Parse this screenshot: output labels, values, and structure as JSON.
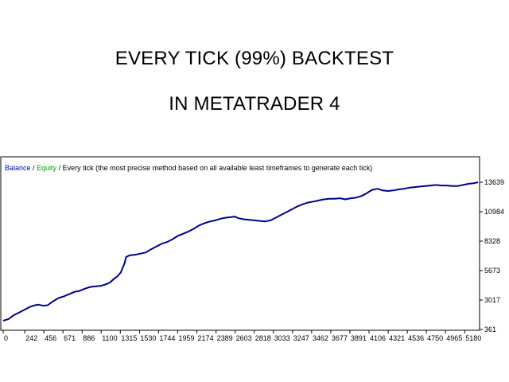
{
  "headline": {
    "line1": "EVERY TICK (99%) BACKTEST",
    "line2": "IN METATRADER 4"
  },
  "legend": {
    "balance": "Balance",
    "sep1": " / ",
    "equity": "Equity",
    "sep2": " / ",
    "description": "Every tick (the most precise method based on all available least timeframes to generate each tick)"
  },
  "colors": {
    "balance_label": "#0000c0",
    "equity_label": "#00a000",
    "line": "#000090",
    "frame": "#000000",
    "background": "#ffffff"
  },
  "chart_data": {
    "type": "line",
    "title": "",
    "xlabel": "",
    "ylabel": "",
    "xlim": [
      0,
      5329
    ],
    "ylim": [
      361,
      14000
    ],
    "x_ticks": [
      0,
      242,
      456,
      671,
      886,
      1100,
      1315,
      1530,
      1744,
      1959,
      2174,
      2389,
      2603,
      2818,
      3033,
      3247,
      3462,
      3677,
      3891,
      4106,
      4321,
      4536,
      4750,
      4965,
      5180
    ],
    "y_ticks": [
      361,
      3017,
      5673,
      8328,
      10984,
      13639
    ],
    "grid": false,
    "legend_position": "top-left",
    "series": [
      {
        "name": "Balance",
        "x": [
          0,
          60,
          120,
          180,
          240,
          300,
          360,
          400,
          450,
          500,
          560,
          620,
          680,
          740,
          800,
          860,
          920,
          980,
          1040,
          1100,
          1160,
          1200,
          1240,
          1280,
          1320,
          1340,
          1360,
          1380,
          1420,
          1480,
          1540,
          1600,
          1660,
          1720,
          1780,
          1840,
          1900,
          1960,
          2020,
          2080,
          2140,
          2200,
          2260,
          2320,
          2380,
          2440,
          2500,
          2560,
          2600,
          2640,
          2700,
          2760,
          2820,
          2880,
          2940,
          3000,
          3060,
          3120,
          3180,
          3240,
          3300,
          3360,
          3420,
          3480,
          3540,
          3600,
          3660,
          3720,
          3780,
          3840,
          3900,
          3960,
          4020,
          4060,
          4100,
          4140,
          4200,
          4260,
          4320,
          4380,
          4440,
          4500,
          4560,
          4620,
          4680,
          4740,
          4800,
          4860,
          4920,
          4980,
          5040,
          5100,
          5160,
          5220,
          5280,
          5329
        ],
        "values": [
          1150,
          1300,
          1650,
          1900,
          2150,
          2400,
          2550,
          2600,
          2500,
          2550,
          2900,
          3200,
          3350,
          3550,
          3750,
          3850,
          4050,
          4200,
          4250,
          4300,
          4450,
          4600,
          4900,
          5150,
          5500,
          5900,
          6300,
          6900,
          7050,
          7100,
          7200,
          7300,
          7600,
          7850,
          8100,
          8250,
          8500,
          8800,
          9000,
          9200,
          9450,
          9750,
          9950,
          10100,
          10200,
          10350,
          10450,
          10500,
          10550,
          10400,
          10300,
          10250,
          10200,
          10150,
          10100,
          10200,
          10450,
          10700,
          10950,
          11200,
          11450,
          11650,
          11800,
          11900,
          12000,
          12100,
          12150,
          12150,
          12200,
          12100,
          12200,
          12250,
          12400,
          12550,
          12750,
          12950,
          13050,
          12900,
          12850,
          12900,
          13000,
          13050,
          13150,
          13200,
          13250,
          13300,
          13350,
          13400,
          13350,
          13350,
          13300,
          13300,
          13400,
          13500,
          13550,
          13639
        ]
      }
    ]
  }
}
